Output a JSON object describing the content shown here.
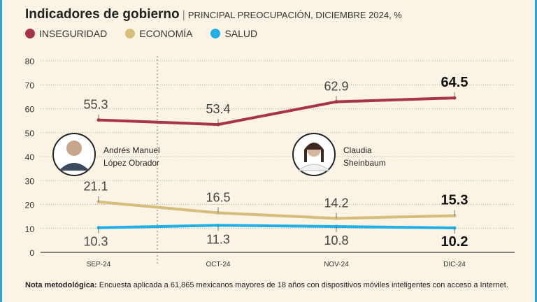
{
  "header": {
    "title": "Indicadores de gobierno",
    "subtitle": "PRINCIPAL PREOCUPACIÓN, DICIEMBRE 2024, %"
  },
  "colors": {
    "inseguridad": "#a8334a",
    "economia": "#d6bd7c",
    "salud": "#1fb0e6"
  },
  "chart_data": {
    "type": "line",
    "categories": [
      "SEP-24",
      "OCT-24",
      "NOV-24",
      "DIC-24"
    ],
    "ylim": [
      0,
      80
    ],
    "yticks": [
      "0",
      "10",
      "20",
      "30",
      "40",
      "50",
      "60",
      "70",
      "80"
    ],
    "grid": true,
    "legend_position": "top-left",
    "series": [
      {
        "name": "INSEGURIDAD",
        "values": [
          55.3,
          53.4,
          62.9,
          64.5
        ],
        "labels": [
          "55.3",
          "53.4",
          "62.9",
          "64.5"
        ]
      },
      {
        "name": "ECONOMÍA",
        "values": [
          21.1,
          16.5,
          14.2,
          15.3
        ],
        "labels": [
          "21.1",
          "16.5",
          "14.2",
          "15.3"
        ]
      },
      {
        "name": "SALUD",
        "values": [
          10.3,
          11.3,
          10.8,
          10.2
        ],
        "labels": [
          "10.3",
          "11.3",
          "10.8",
          "10.2"
        ]
      }
    ]
  },
  "annotations": {
    "amlo_line1": "Andrés Manuel",
    "amlo_line2": "López Obrador",
    "sheinbaum_line1": "Claudia",
    "sheinbaum_line2": "Sheinbaum"
  },
  "note": {
    "label": "Nota metodológica:",
    "text": " Encuesta aplicada a 61,865 mexicanos mayores de 18 años con dispositivos móviles inteligentes con acceso a Internet."
  }
}
